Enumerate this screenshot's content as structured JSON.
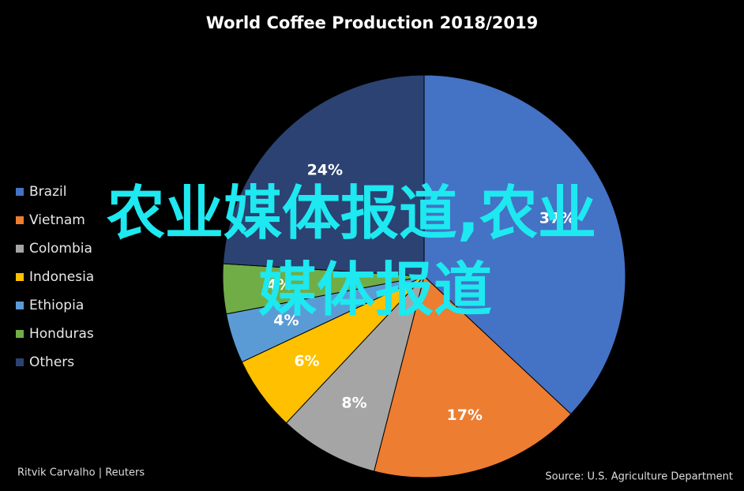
{
  "chart_data": {
    "type": "pie",
    "title": "World Coffee Production 2018/2019",
    "categories": [
      "Brazil",
      "Vietnam",
      "Colombia",
      "Indonesia",
      "Ethiopia",
      "Honduras",
      "Others"
    ],
    "values": [
      37,
      17,
      8,
      6,
      4,
      4,
      24
    ],
    "value_labels": [
      "37%",
      "17%",
      "8%",
      "6%",
      "4%",
      "4%",
      "24%"
    ],
    "colors": [
      "#4472c4",
      "#ed7d31",
      "#a5a5a5",
      "#ffc000",
      "#5b9bd5",
      "#70ad47",
      "#2b4272"
    ],
    "legend": "left",
    "credit": "Ritvik Carvalho | Reuters",
    "source": "Source: U.S. Agriculture Department"
  },
  "overlay": {
    "lines": [
      "农业媒体报道,农业",
      "媒体报道"
    ]
  }
}
